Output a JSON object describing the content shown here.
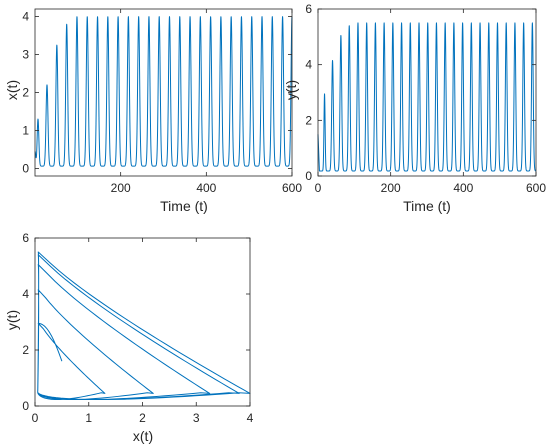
{
  "figure": {
    "line_color": "#0072BD",
    "axis_color": "#262626",
    "background": "#ffffff"
  },
  "chart_data": [
    {
      "id": "x-time",
      "type": "line",
      "xlabel": "Time (t)",
      "ylabel": "x(t)",
      "xlim": [
        0,
        600
      ],
      "ylim": [
        -0.2,
        4.2
      ],
      "xticks": [
        200,
        400,
        600
      ],
      "yticks": [
        0,
        1,
        2,
        3,
        4
      ],
      "xtick_labels": [
        "200",
        "400",
        "600"
      ],
      "ytick_labels": [
        "0",
        "1",
        "2",
        "3",
        "4"
      ],
      "grid": false,
      "legend": "none",
      "series": [
        {
          "values": {
            "t0": 0.5,
            "v0": 0.5,
            "min": 0.06,
            "width": 0.35,
            "peak_times": [
              7,
              28,
              51,
              74,
              98,
              122,
              146,
              170,
              194,
              218,
              242,
              266,
              290,
              314,
              338,
              362,
              386,
              410,
              434,
              458,
              482,
              506,
              530,
              554,
              578,
              600
            ],
            "peak_values": [
              1.3,
              2.2,
              3.25,
              3.8,
              4.0,
              4.0,
              4.0,
              4.0,
              4.0,
              4.0,
              4.0,
              4.0,
              4.0,
              4.0,
              4.0,
              4.0,
              4.0,
              4.0,
              4.0,
              4.0,
              4.0,
              4.0,
              4.0,
              4.0,
              4.0,
              4.0
            ]
          }
        }
      ]
    },
    {
      "id": "y-time",
      "type": "line",
      "xlabel": "Time (t)",
      "ylabel": "y(t)",
      "xlim": [
        0,
        600
      ],
      "ylim": [
        0,
        6
      ],
      "xticks": [
        0,
        200,
        400,
        600
      ],
      "yticks": [
        0,
        2,
        4,
        6
      ],
      "xtick_labels": [
        "0",
        "200",
        "400",
        "600"
      ],
      "ytick_labels": [
        "0",
        "2",
        "4",
        "6"
      ],
      "grid": false,
      "legend": "none",
      "series": [
        {
          "values": {
            "t0": 0,
            "v0": 1.5,
            "min": 0.18,
            "width": 0.28,
            "peak_times": [
              18,
              40,
              63,
              86,
              110,
              134,
              158,
              182,
              206,
              230,
              254,
              278,
              302,
              326,
              350,
              374,
              398,
              422,
              446,
              470,
              494,
              518,
              542,
              566,
              590
            ],
            "peak_values": [
              2.95,
              4.15,
              5.05,
              5.4,
              5.5,
              5.5,
              5.5,
              5.5,
              5.5,
              5.5,
              5.5,
              5.5,
              5.5,
              5.5,
              5.5,
              5.5,
              5.5,
              5.5,
              5.5,
              5.5,
              5.5,
              5.5,
              5.5,
              5.5,
              5.5
            ]
          }
        }
      ]
    },
    {
      "id": "phase",
      "type": "line",
      "xlabel": "x(t)",
      "ylabel": "y(t)",
      "xlim": [
        0,
        4
      ],
      "ylim": [
        0,
        6
      ],
      "xticks": [
        0,
        1,
        2,
        3,
        4
      ],
      "yticks": [
        0,
        2,
        4,
        6
      ],
      "xtick_labels": [
        "0",
        "1",
        "2",
        "3",
        "4"
      ],
      "ytick_labels": [
        "0",
        "2",
        "4",
        "6"
      ],
      "grid": false,
      "legend": "none",
      "series": [
        {
          "values": {
            "start": [
              0.5,
              1.6
            ],
            "loops": [
              {
                "xmax": 1.3,
                "ymax": 2.95
              },
              {
                "xmax": 2.2,
                "ymax": 4.15
              },
              {
                "xmax": 3.25,
                "ymax": 5.05
              },
              {
                "xmax": 3.8,
                "ymax": 5.4
              },
              {
                "xmax": 4.0,
                "ymax": 5.5
              },
              {
                "xmax": 4.0,
                "ymax": 5.5
              }
            ]
          }
        }
      ]
    }
  ]
}
